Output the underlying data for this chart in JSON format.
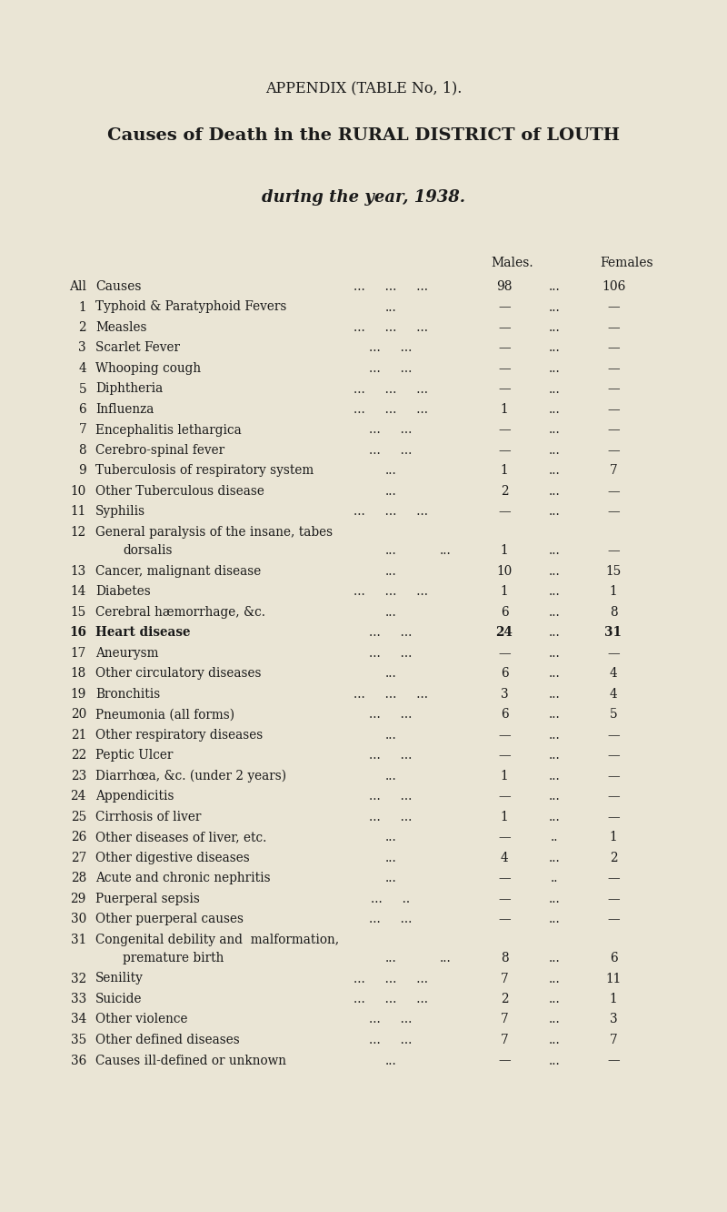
{
  "title1": "APPENDIX (TABLE No, 1).",
  "title2": "Causes of Death in the RURAL DISTRICT of LOUTH",
  "title3": "during the year, 1938.",
  "col_males": "Males.",
  "col_females": "Females",
  "bg_color": "#EAE5D5",
  "text_color": "#1a1a1a",
  "rows": [
    {
      "num": "All",
      "cause": "Causes",
      "dots": "...     ...     ...",
      "males": "98",
      "sep": "...",
      "females": "106",
      "bold": false,
      "allcauses": true,
      "twolines": false
    },
    {
      "num": "1",
      "cause": "Typhoid & Paratyphoid Fevers",
      "dots": "...",
      "males": "—",
      "sep": "...",
      "females": "—",
      "bold": false,
      "allcauses": false,
      "twolines": false
    },
    {
      "num": "2",
      "cause": "Measles",
      "dots": "...     ...     ...",
      "males": "—",
      "sep": "...",
      "females": "—",
      "bold": false,
      "allcauses": false,
      "twolines": false
    },
    {
      "num": "3",
      "cause": "Scarlet Fever",
      "dots": "...     ...",
      "males": "—",
      "sep": "...",
      "females": "—",
      "bold": false,
      "allcauses": false,
      "twolines": false
    },
    {
      "num": "4",
      "cause": "Whooping cough",
      "dots": "...     ...",
      "males": "—",
      "sep": "...",
      "females": "—",
      "bold": false,
      "allcauses": false,
      "twolines": false
    },
    {
      "num": "5",
      "cause": "Diphtheria",
      "dots": "...     ...     ...",
      "males": "—",
      "sep": "...",
      "females": "—",
      "bold": false,
      "allcauses": false,
      "twolines": false
    },
    {
      "num": "6",
      "cause": "Influenza",
      "dots": "...     ...     ...",
      "males": "1",
      "sep": "...",
      "females": "—",
      "bold": false,
      "allcauses": false,
      "twolines": false
    },
    {
      "num": "7",
      "cause": "Encephalitis lethargica",
      "dots": "...     ...",
      "males": "—",
      "sep": "...",
      "females": "—",
      "bold": false,
      "allcauses": false,
      "twolines": false
    },
    {
      "num": "8",
      "cause": "Cerebro-spinal fever",
      "dots": "...     ...",
      "males": "—",
      "sep": "...",
      "females": "—",
      "bold": false,
      "allcauses": false,
      "twolines": false
    },
    {
      "num": "9",
      "cause": "Tuberculosis of respiratory system",
      "dots": "...",
      "males": "1",
      "sep": "...",
      "females": "7",
      "bold": false,
      "allcauses": false,
      "twolines": false
    },
    {
      "num": "10",
      "cause": "Other Tuberculous disease",
      "dots": "...",
      "males": "2",
      "sep": "...",
      "females": "—",
      "bold": false,
      "allcauses": false,
      "twolines": false
    },
    {
      "num": "11",
      "cause": "Syphilis",
      "dots": "...     ...     ...",
      "males": "—",
      "sep": "...",
      "females": "—",
      "bold": false,
      "allcauses": false,
      "twolines": false
    },
    {
      "num": "12",
      "cause": "General paralysis of the insane, tabes",
      "dots": "",
      "males": "",
      "sep": "",
      "females": "",
      "bold": false,
      "allcauses": false,
      "twolines": true,
      "cause2": "dorsalis",
      "dots2": "...     ...",
      "males2": "1",
      "sep2": "...",
      "females2": "—"
    },
    {
      "num": "13",
      "cause": "Cancer, malignant disease",
      "dots": "...",
      "males": "10",
      "sep": "...",
      "females": "15",
      "bold": false,
      "allcauses": false,
      "twolines": false
    },
    {
      "num": "14",
      "cause": "Diabetes",
      "dots": "...     ...     ...",
      "males": "1",
      "sep": "...",
      "females": "1",
      "bold": false,
      "allcauses": false,
      "twolines": false
    },
    {
      "num": "15",
      "cause": "Cerebral hæmorrhage, &c.",
      "dots": "...",
      "males": "6",
      "sep": "...",
      "females": "8",
      "bold": false,
      "allcauses": false,
      "twolines": false
    },
    {
      "num": "16",
      "cause": "Heart disease",
      "dots": "...     ...",
      "males": "24",
      "sep": "...",
      "females": "31",
      "bold": true,
      "allcauses": false,
      "twolines": false
    },
    {
      "num": "17",
      "cause": "Aneurysm",
      "dots": "...     ...",
      "males": "—",
      "sep": "...",
      "females": "—",
      "bold": false,
      "allcauses": false,
      "twolines": false
    },
    {
      "num": "18",
      "cause": "Other circulatory diseases",
      "dots": "...",
      "males": "6",
      "sep": "...",
      "females": "4",
      "bold": false,
      "allcauses": false,
      "twolines": false
    },
    {
      "num": "19",
      "cause": "Bronchitis",
      "dots": "...     ...     ...",
      "males": "3",
      "sep": "...",
      "females": "4",
      "bold": false,
      "allcauses": false,
      "twolines": false
    },
    {
      "num": "20",
      "cause": "Pneumonia (all forms)",
      "dots": "...     ...",
      "males": "6",
      "sep": "...",
      "females": "5",
      "bold": false,
      "allcauses": false,
      "twolines": false
    },
    {
      "num": "21",
      "cause": "Other respiratory diseases",
      "dots": "...",
      "males": "—",
      "sep": "...",
      "females": "—",
      "bold": false,
      "allcauses": false,
      "twolines": false
    },
    {
      "num": "22",
      "cause": "Peptic Ulcer",
      "dots": "...     ...",
      "males": "—",
      "sep": "...",
      "females": "—",
      "bold": false,
      "allcauses": false,
      "twolines": false
    },
    {
      "num": "23",
      "cause": "Diarrhœa, &c. (under 2 years)",
      "dots": "...",
      "males": "1",
      "sep": "...",
      "females": "—",
      "bold": false,
      "allcauses": false,
      "twolines": false
    },
    {
      "num": "24",
      "cause": "Appendicitis",
      "dots": "...     ...",
      "males": "—",
      "sep": "...",
      "females": "—",
      "bold": false,
      "allcauses": false,
      "twolines": false
    },
    {
      "num": "25",
      "cause": "Cirrhosis of liver",
      "dots": "...     ...",
      "males": "1",
      "sep": "...",
      "females": "—",
      "bold": false,
      "allcauses": false,
      "twolines": false
    },
    {
      "num": "26",
      "cause": "Other diseases of liver, etc.",
      "dots": "...",
      "males": "—",
      "sep": "..",
      "females": "1",
      "bold": false,
      "allcauses": false,
      "twolines": false
    },
    {
      "num": "27",
      "cause": "Other digestive diseases",
      "dots": "...",
      "males": "4",
      "sep": "...",
      "females": "2",
      "bold": false,
      "allcauses": false,
      "twolines": false
    },
    {
      "num": "28",
      "cause": "Acute and chronic nephritis",
      "dots": "...",
      "males": "—",
      "sep": "..",
      "females": "—",
      "bold": false,
      "allcauses": false,
      "twolines": false
    },
    {
      "num": "29",
      "cause": "Puerperal sepsis",
      "dots": "...     ..",
      "males": "—",
      "sep": "...",
      "females": "—",
      "bold": false,
      "allcauses": false,
      "twolines": false
    },
    {
      "num": "30",
      "cause": "Other puerperal causes",
      "dots": "...     ...",
      "males": "—",
      "sep": "...",
      "females": "—",
      "bold": false,
      "allcauses": false,
      "twolines": false
    },
    {
      "num": "31",
      "cause": "Congenital debility and  malformation,",
      "dots": "",
      "males": "",
      "sep": "",
      "females": "",
      "bold": false,
      "allcauses": false,
      "twolines": true,
      "cause2": "premature birth",
      "dots2": "...     ...",
      "males2": "8",
      "sep2": "...",
      "females2": "6"
    },
    {
      "num": "32",
      "cause": "Senility",
      "dots": "...     ...     ...",
      "males": "7",
      "sep": "...",
      "females": "11",
      "bold": false,
      "allcauses": false,
      "twolines": false
    },
    {
      "num": "33",
      "cause": "Suicide",
      "dots": "...     ...     ...",
      "males": "2",
      "sep": "...",
      "females": "1",
      "bold": false,
      "allcauses": false,
      "twolines": false
    },
    {
      "num": "34",
      "cause": "Other violence",
      "dots": "...     ...",
      "males": "7",
      "sep": "...",
      "females": "3",
      "bold": false,
      "allcauses": false,
      "twolines": false
    },
    {
      "num": "35",
      "cause": "Other defined diseases",
      "dots": "...     ...",
      "males": "7",
      "sep": "...",
      "females": "7",
      "bold": false,
      "allcauses": false,
      "twolines": false
    },
    {
      "num": "36",
      "cause": "Causes ill-defined or unknown",
      "dots": "...",
      "males": "—",
      "sep": "...",
      "females": "—",
      "bold": false,
      "allcauses": false,
      "twolines": false
    }
  ]
}
